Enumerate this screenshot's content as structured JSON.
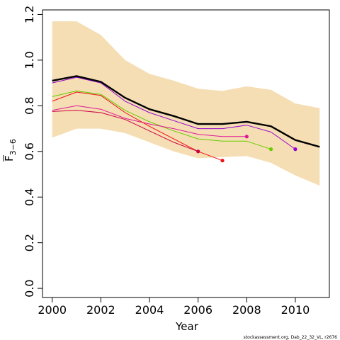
{
  "chart_data": {
    "type": "line",
    "xlabel": "Year",
    "ylabel_main": "F",
    "ylabel_subscript": "3−6",
    "xlim": [
      1999.6,
      2011.4
    ],
    "ylim": [
      -0.04,
      1.22
    ],
    "x_ticks": [
      2000,
      2002,
      2004,
      2006,
      2008,
      2010
    ],
    "y_ticks": [
      0.0,
      0.2,
      0.4,
      0.6,
      0.8,
      1.0,
      1.2
    ],
    "y_tick_labels": [
      "0.0",
      "0.2",
      "0.4",
      "0.6",
      "0.8",
      "1.0",
      "1.2"
    ],
    "grid": false,
    "legend": "none",
    "confidence_band": {
      "color": "#f5deb3",
      "x": [
        2000,
        2001,
        2002,
        2003,
        2004,
        2005,
        2006,
        2007,
        2008,
        2009,
        2010,
        2011
      ],
      "upper": [
        1.17,
        1.17,
        1.11,
        1.0,
        0.94,
        0.91,
        0.875,
        0.865,
        0.885,
        0.87,
        0.81,
        0.79
      ],
      "lower": [
        0.66,
        0.7,
        0.7,
        0.68,
        0.64,
        0.6,
        0.57,
        0.575,
        0.58,
        0.55,
        0.495,
        0.45
      ]
    },
    "series": [
      {
        "color": "#000000",
        "width": 2.4,
        "end_marker": false,
        "x": [
          2000,
          2001,
          2002,
          2003,
          2004,
          2005,
          2006,
          2007,
          2008,
          2009,
          2010,
          2011
        ],
        "y": [
          0.91,
          0.93,
          0.905,
          0.835,
          0.785,
          0.755,
          0.72,
          0.72,
          0.73,
          0.71,
          0.65,
          0.62
        ]
      },
      {
        "color": "#9400d3",
        "width": 1,
        "end_marker": true,
        "x": [
          2000,
          2001,
          2002,
          2003,
          2004,
          2005,
          2006,
          2007,
          2008,
          2009,
          2010
        ],
        "y": [
          0.9,
          0.925,
          0.9,
          0.82,
          0.77,
          0.735,
          0.7,
          0.7,
          0.715,
          0.685,
          0.61
        ]
      },
      {
        "color": "#66cc00",
        "width": 1,
        "end_marker": true,
        "x": [
          2000,
          2001,
          2002,
          2003,
          2004,
          2005,
          2006,
          2007,
          2008,
          2009
        ],
        "y": [
          0.84,
          0.865,
          0.85,
          0.78,
          0.73,
          0.69,
          0.655,
          0.645,
          0.645,
          0.61
        ]
      },
      {
        "color": "#e0189a",
        "width": 1,
        "end_marker": true,
        "x": [
          2000,
          2001,
          2002,
          2003,
          2004,
          2005,
          2006,
          2007,
          2008
        ],
        "y": [
          0.78,
          0.8,
          0.785,
          0.745,
          0.72,
          0.7,
          0.675,
          0.665,
          0.665
        ]
      },
      {
        "color": "#ee1111",
        "width": 1,
        "end_marker": true,
        "x": [
          2000,
          2001,
          2002,
          2003,
          2004,
          2005,
          2006,
          2007
        ],
        "y": [
          0.82,
          0.86,
          0.845,
          0.77,
          0.71,
          0.655,
          0.6,
          0.56
        ]
      },
      {
        "color": "#cc0044",
        "width": 1,
        "end_marker": true,
        "x": [
          2000,
          2001,
          2002,
          2003,
          2004,
          2005,
          2006
        ],
        "y": [
          0.775,
          0.78,
          0.77,
          0.74,
          0.69,
          0.64,
          0.6
        ]
      }
    ]
  },
  "footer": "stockassessment.org, Dab_22_32_VL, r2676"
}
